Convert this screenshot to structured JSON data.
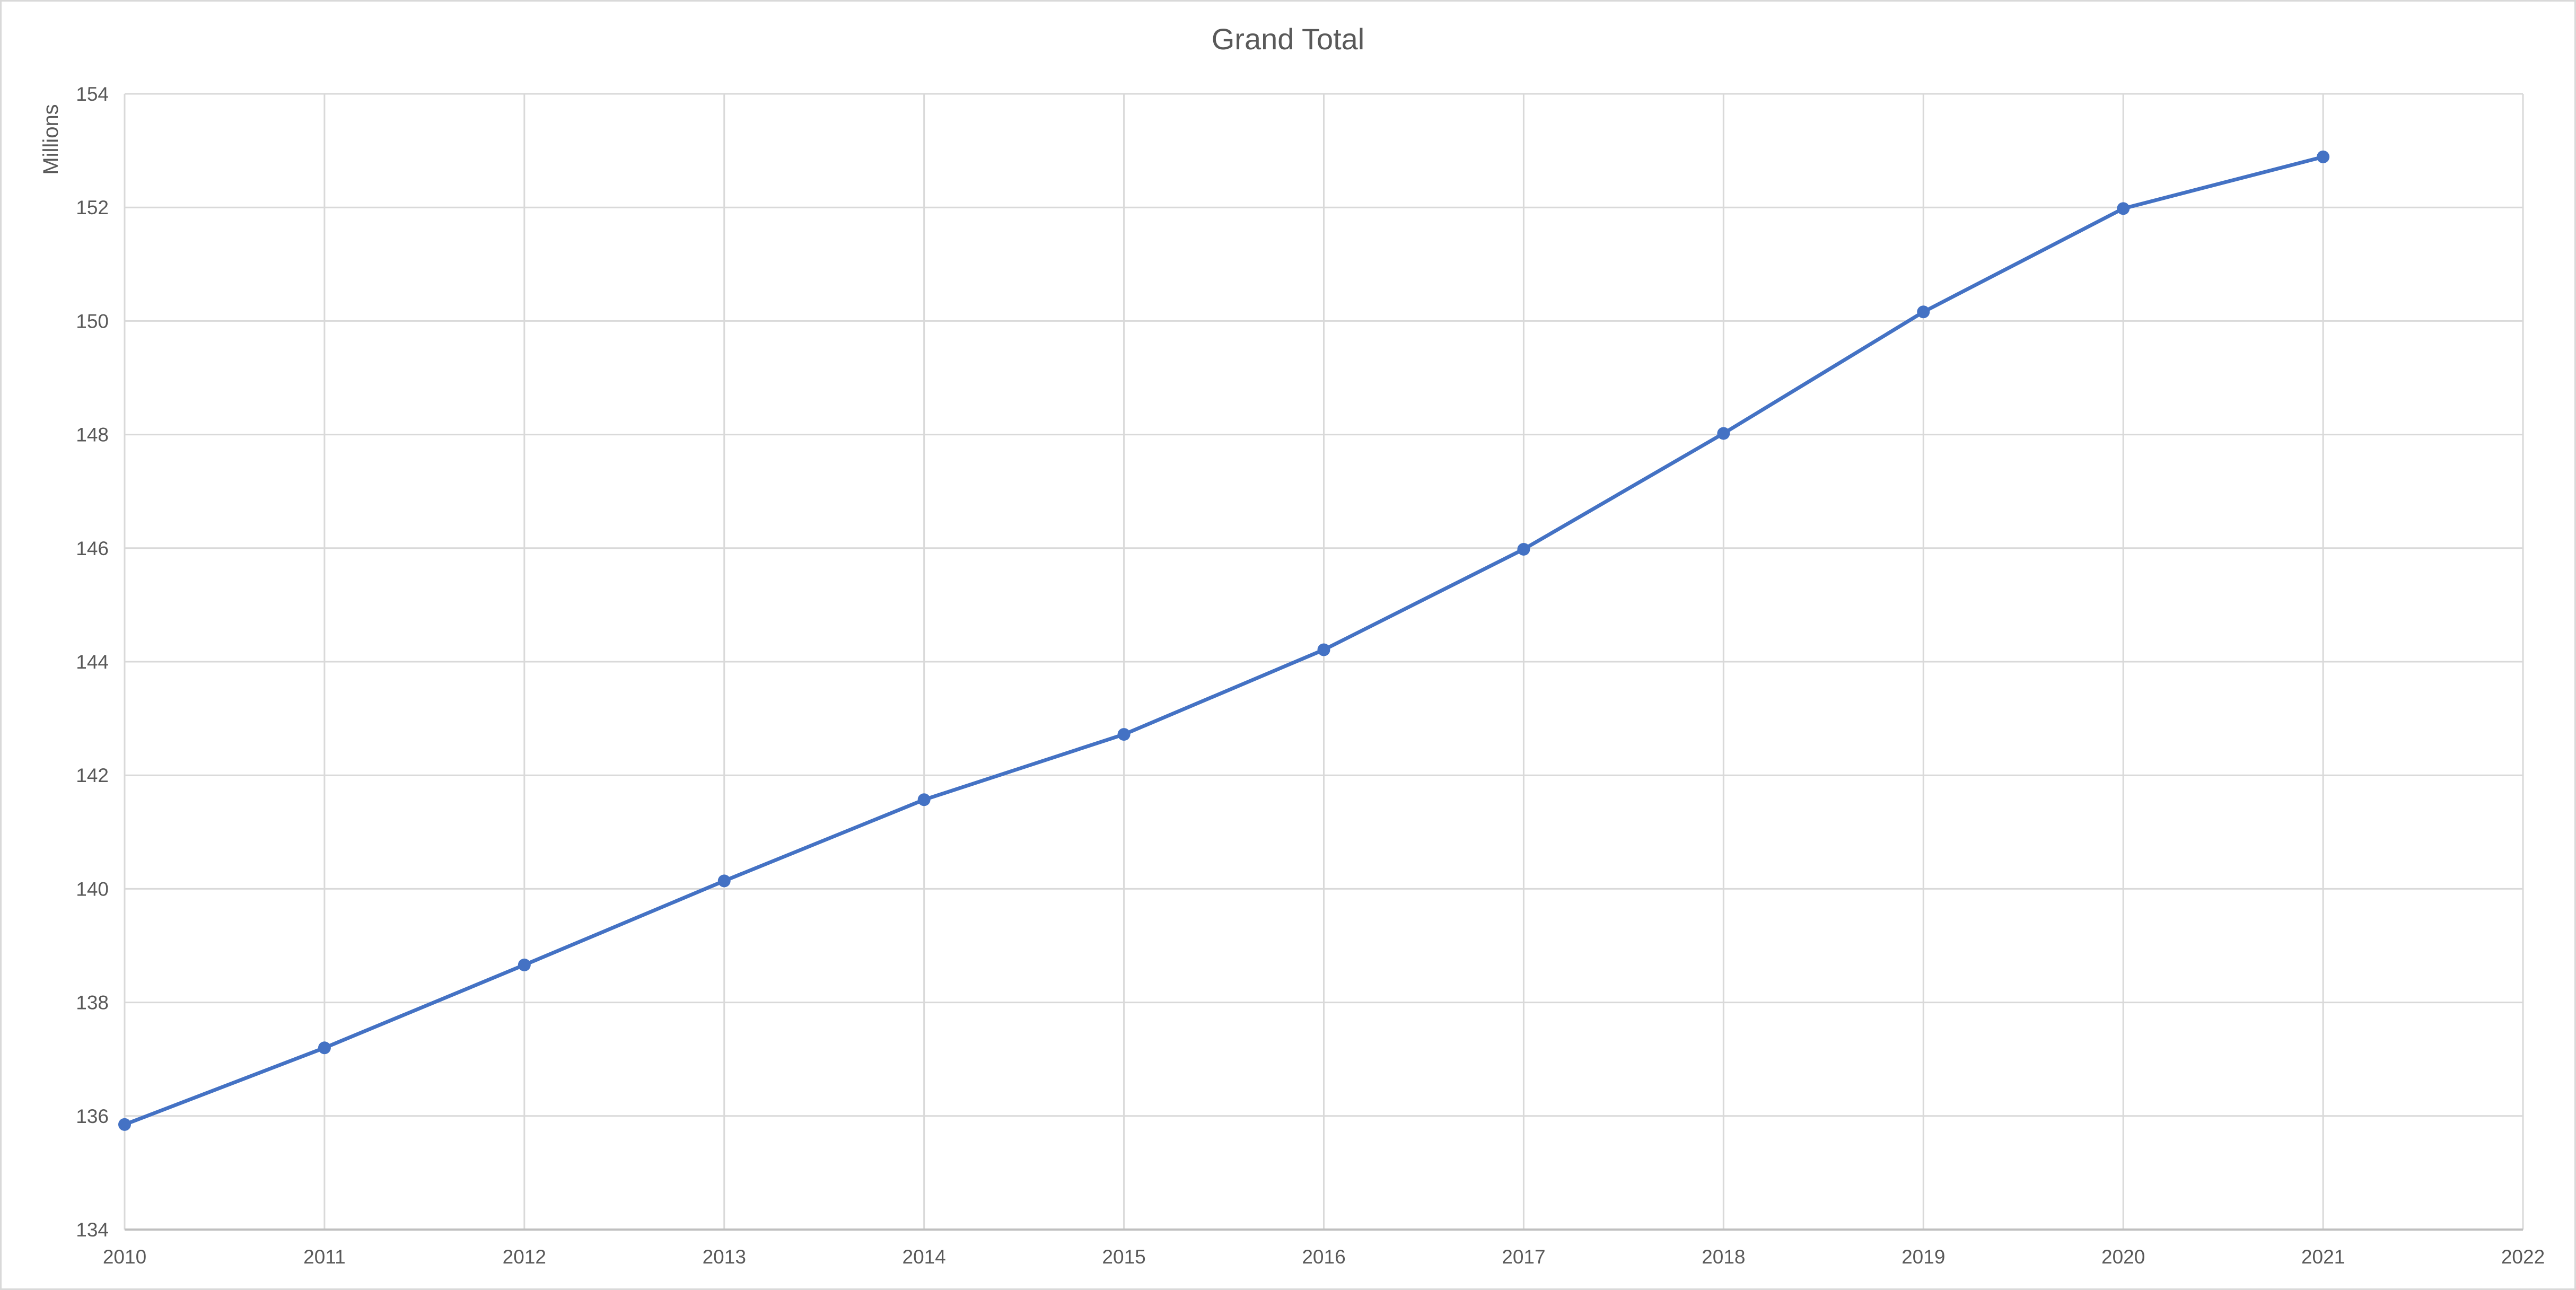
{
  "chart_data": {
    "type": "line",
    "title": "Grand Total",
    "xlabel": "",
    "ylabel": "Millions",
    "x": [
      2010,
      2011,
      2012,
      2013,
      2014,
      2015,
      2016,
      2017,
      2018,
      2019,
      2020,
      2021
    ],
    "series": [
      {
        "values": [
          135.85,
          137.2,
          138.66,
          140.14,
          141.57,
          142.72,
          144.21,
          145.98,
          148.02,
          150.16,
          151.98,
          152.89
        ],
        "color": "#4472c4"
      }
    ],
    "xlim": [
      2010,
      2022
    ],
    "ylim": [
      134,
      154
    ],
    "xticks": [
      2010,
      2011,
      2012,
      2013,
      2014,
      2015,
      2016,
      2017,
      2018,
      2019,
      2020,
      2021,
      2022
    ],
    "yticks": [
      134,
      136,
      138,
      140,
      142,
      144,
      146,
      148,
      150,
      152,
      154
    ],
    "grid": true,
    "legend": "none",
    "colors": {
      "line": "#4472c4",
      "grid": "#d9d9d9",
      "axis": "#bfbfbf",
      "text": "#595959"
    }
  }
}
